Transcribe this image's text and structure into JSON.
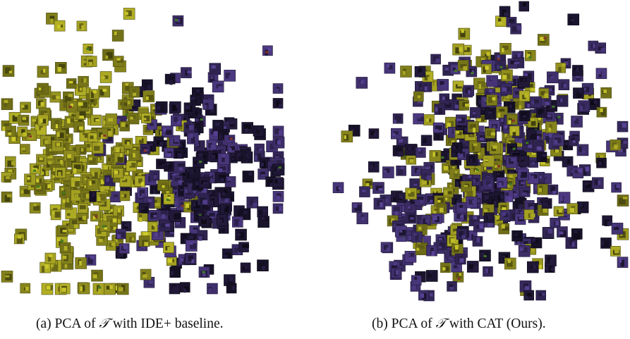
{
  "figure": {
    "panels": [
      {
        "caption_prefix": "(a) PCA of",
        "caption_symbol": "𝒯",
        "caption_suffix": "with IDE+ baseline."
      },
      {
        "caption_prefix": "(b) PCA of",
        "caption_symbol": "𝒯",
        "caption_suffix": "with CAT (Ours)."
      }
    ]
  },
  "colors": {
    "yellow_cluster": "#8f8d1e",
    "purple_cluster": "#3d2e68",
    "dark_cluster": "#1c1530",
    "green_accent": "#3e7a22",
    "red_accent": "#8a3324"
  },
  "chart_data": [
    {
      "type": "scatter",
      "title": "",
      "xlabel": "",
      "ylabel": "",
      "marker": "image-thumbnail",
      "grid": false,
      "axes_visible": false,
      "description_groups": [
        "yellow",
        "purple"
      ],
      "layout_pattern": "separated"
    },
    {
      "type": "scatter",
      "title": "",
      "xlabel": "",
      "ylabel": "",
      "marker": "image-thumbnail",
      "grid": false,
      "axes_visible": false,
      "description_groups": [
        "yellow",
        "purple"
      ],
      "layout_pattern": "mixed"
    }
  ]
}
